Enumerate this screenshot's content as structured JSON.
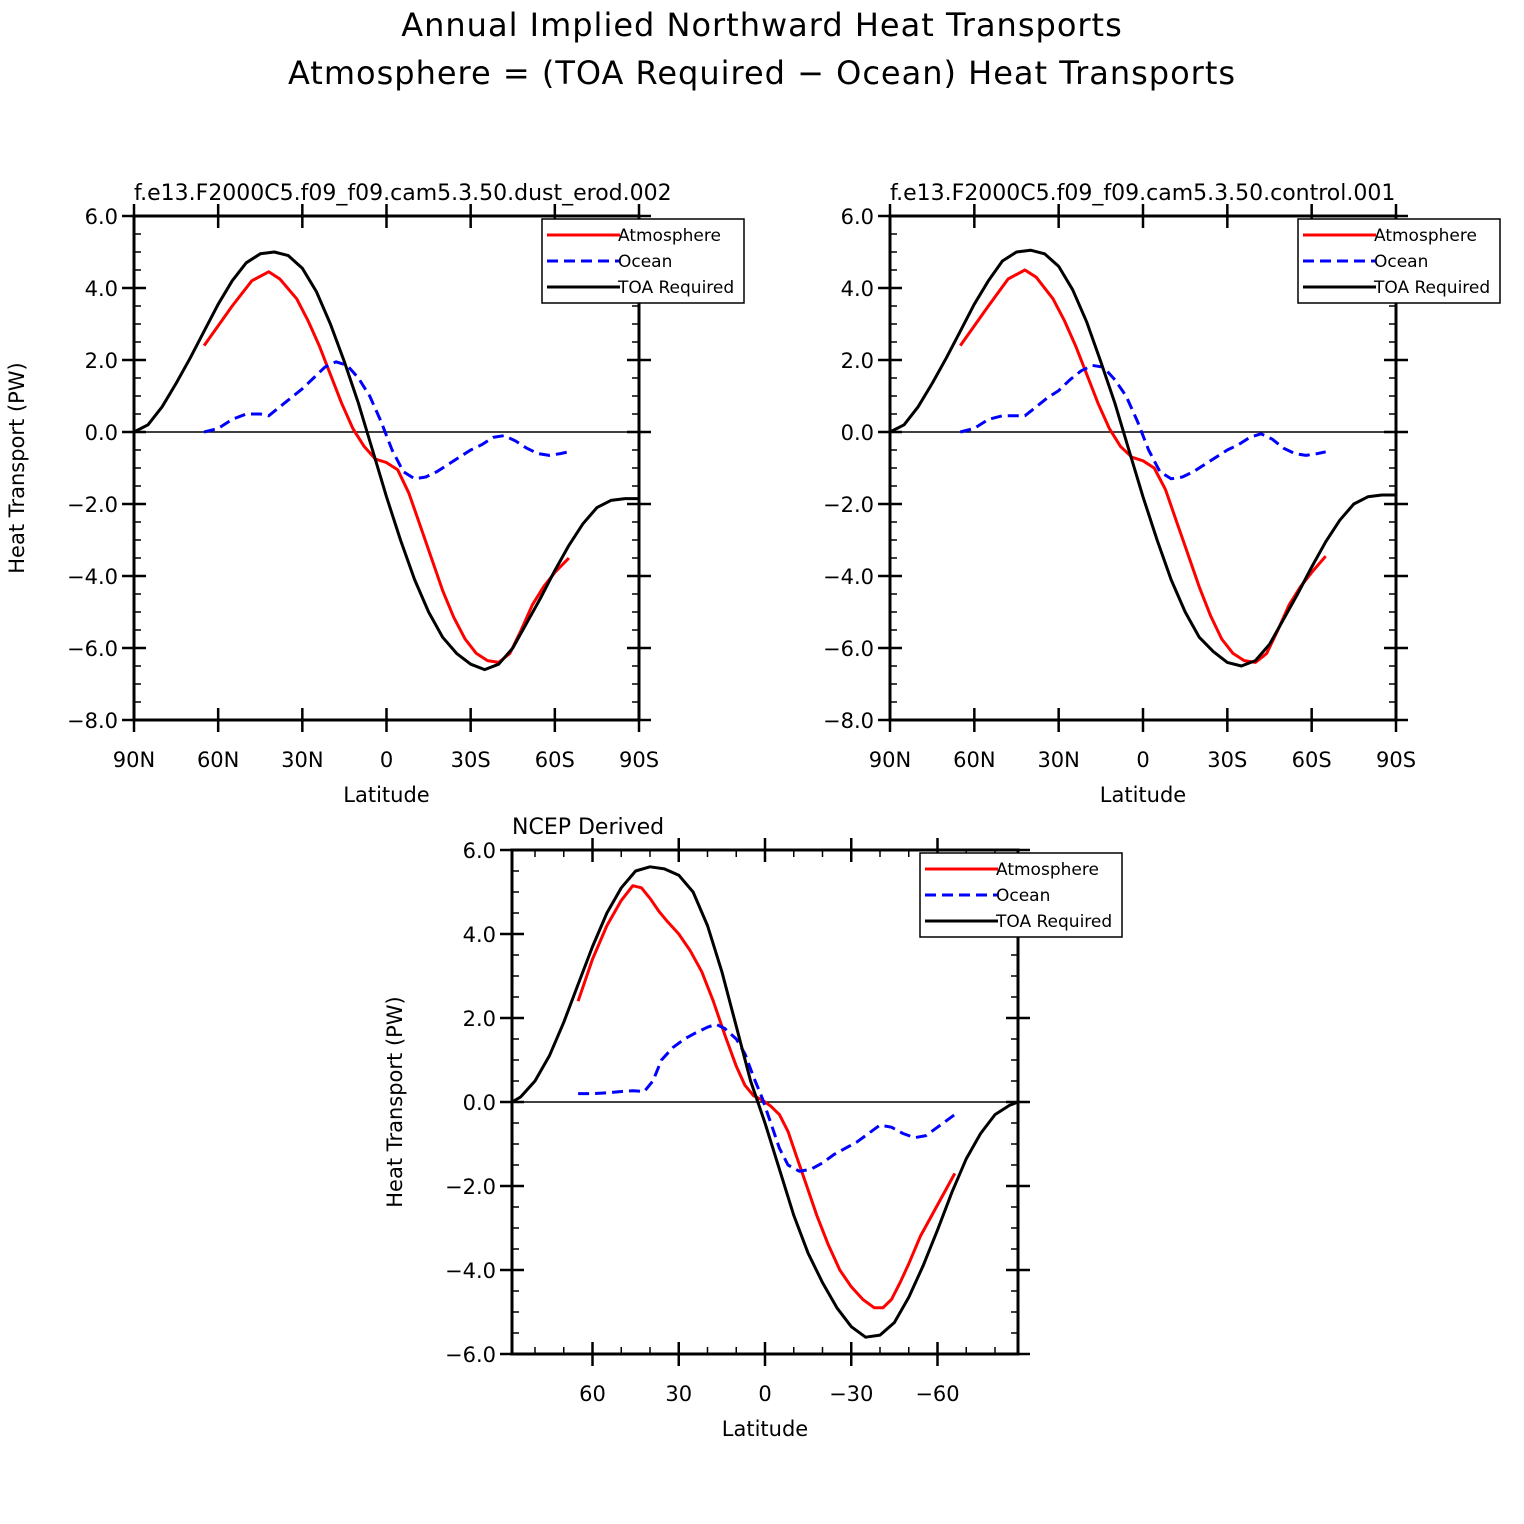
{
  "figure": {
    "title_line1": "Annual Implied Northward Heat Transports",
    "title_line2": "Atmosphere = (TOA Required − Ocean) Heat Transports"
  },
  "colors": {
    "atmosphere": "#ff0000",
    "ocean": "#0000ff",
    "toa": "#000000"
  },
  "chart_data": [
    {
      "type": "line",
      "title": "f.e13.F2000C5.f09_f09.cam5.3.50.dust_erod.002",
      "xlabel": "Latitude",
      "ylabel": "Heat Transport (PW)",
      "xlim": [
        90,
        -90
      ],
      "ylim": [
        -8,
        6
      ],
      "xticks": [
        90,
        60,
        30,
        0,
        -30,
        -60,
        -90
      ],
      "xtick_labels": [
        "90N",
        "60N",
        "30N",
        "0",
        "30S",
        "60S",
        "90S"
      ],
      "xminor": [],
      "yticks": [
        6,
        4,
        2,
        0,
        -2,
        -4,
        -6,
        -8
      ],
      "ytick_labels": [
        "6.0",
        "4.0",
        "2.0",
        "0.0",
        "−2.0",
        "−4.0",
        "−6.0",
        "−8.0"
      ],
      "legend_position": "top-right",
      "series": [
        {
          "name": "Atmosphere",
          "style": "solid",
          "x": [
            65,
            55,
            48,
            42,
            38,
            32,
            28,
            24,
            20,
            16,
            12,
            8,
            4,
            0,
            -4,
            -8,
            -12,
            -16,
            -20,
            -24,
            -28,
            -32,
            -36,
            -40,
            -44,
            -48,
            -52,
            -56,
            -60,
            -65
          ],
          "y": [
            2.4,
            3.5,
            4.2,
            4.45,
            4.25,
            3.7,
            3.1,
            2.4,
            1.6,
            0.8,
            0.1,
            -0.4,
            -0.75,
            -0.85,
            -1.05,
            -1.7,
            -2.6,
            -3.5,
            -4.4,
            -5.15,
            -5.75,
            -6.15,
            -6.35,
            -6.4,
            -6.15,
            -5.5,
            -4.8,
            -4.3,
            -3.9,
            -3.5
          ]
        },
        {
          "name": "Ocean",
          "style": "dashed",
          "x": [
            65,
            60,
            55,
            50,
            45,
            42,
            38,
            34,
            30,
            26,
            22,
            18,
            14,
            10,
            6,
            2,
            -2,
            -6,
            -10,
            -14,
            -18,
            -22,
            -26,
            -30,
            -34,
            -38,
            -42,
            -46,
            -50,
            -54,
            -58,
            -62,
            -65
          ],
          "y": [
            0.0,
            0.1,
            0.35,
            0.5,
            0.5,
            0.45,
            0.7,
            0.95,
            1.2,
            1.5,
            1.8,
            1.95,
            1.85,
            1.5,
            1.0,
            0.3,
            -0.5,
            -1.1,
            -1.3,
            -1.25,
            -1.1,
            -0.9,
            -0.7,
            -0.5,
            -0.35,
            -0.15,
            -0.1,
            -0.25,
            -0.45,
            -0.6,
            -0.65,
            -0.6,
            -0.55
          ]
        },
        {
          "name": "TOA Required",
          "style": "solid",
          "x": [
            90,
            85,
            80,
            75,
            70,
            65,
            60,
            55,
            50,
            45,
            40,
            35,
            30,
            25,
            20,
            15,
            10,
            5,
            0,
            -5,
            -10,
            -15,
            -20,
            -25,
            -30,
            -35,
            -40,
            -45,
            -50,
            -55,
            -60,
            -65,
            -70,
            -75,
            -80,
            -85,
            -90
          ],
          "y": [
            0.0,
            0.2,
            0.7,
            1.35,
            2.05,
            2.8,
            3.55,
            4.2,
            4.7,
            4.95,
            5.0,
            4.9,
            4.55,
            3.9,
            3.0,
            1.95,
            0.8,
            -0.5,
            -1.8,
            -3.0,
            -4.1,
            -5.0,
            -5.7,
            -6.15,
            -6.45,
            -6.6,
            -6.45,
            -6.0,
            -5.3,
            -4.6,
            -3.85,
            -3.15,
            -2.55,
            -2.1,
            -1.9,
            -1.85,
            -1.85
          ]
        }
      ]
    },
    {
      "type": "line",
      "title": "f.e13.F2000C5.f09_f09.cam5.3.50.control.001",
      "xlabel": "Latitude",
      "ylabel": "",
      "xlim": [
        90,
        -90
      ],
      "ylim": [
        -8,
        6
      ],
      "xticks": [
        90,
        60,
        30,
        0,
        -30,
        -60,
        -90
      ],
      "xtick_labels": [
        "90N",
        "60N",
        "30N",
        "0",
        "30S",
        "60S",
        "90S"
      ],
      "xminor": [],
      "yticks": [
        6,
        4,
        2,
        0,
        -2,
        -4,
        -6,
        -8
      ],
      "ytick_labels": [
        "6.0",
        "4.0",
        "2.0",
        "0.0",
        "−2.0",
        "−4.0",
        "−6.0",
        "−8.0"
      ],
      "legend_position": "top-right",
      "series": [
        {
          "name": "Atmosphere",
          "style": "solid",
          "x": [
            65,
            55,
            48,
            42,
            38,
            32,
            28,
            24,
            20,
            16,
            12,
            8,
            4,
            0,
            -4,
            -8,
            -12,
            -16,
            -20,
            -24,
            -28,
            -32,
            -36,
            -40,
            -44,
            -48,
            -52,
            -56,
            -60,
            -65
          ],
          "y": [
            2.4,
            3.5,
            4.25,
            4.5,
            4.3,
            3.7,
            3.1,
            2.4,
            1.6,
            0.8,
            0.1,
            -0.4,
            -0.7,
            -0.8,
            -1.0,
            -1.6,
            -2.5,
            -3.4,
            -4.3,
            -5.1,
            -5.75,
            -6.15,
            -6.35,
            -6.4,
            -6.15,
            -5.5,
            -4.8,
            -4.3,
            -3.9,
            -3.45
          ]
        },
        {
          "name": "Ocean",
          "style": "dashed",
          "x": [
            65,
            60,
            55,
            50,
            45,
            42,
            38,
            34,
            30,
            26,
            22,
            18,
            14,
            10,
            6,
            2,
            -2,
            -6,
            -10,
            -14,
            -18,
            -22,
            -26,
            -30,
            -34,
            -38,
            -42,
            -46,
            -50,
            -54,
            -58,
            -62,
            -65
          ],
          "y": [
            0.0,
            0.1,
            0.35,
            0.45,
            0.45,
            0.45,
            0.7,
            0.95,
            1.15,
            1.45,
            1.7,
            1.85,
            1.8,
            1.45,
            1.0,
            0.3,
            -0.5,
            -1.1,
            -1.3,
            -1.25,
            -1.1,
            -0.9,
            -0.7,
            -0.5,
            -0.35,
            -0.15,
            -0.05,
            -0.2,
            -0.45,
            -0.6,
            -0.65,
            -0.6,
            -0.55
          ]
        },
        {
          "name": "TOA Required",
          "style": "solid",
          "x": [
            90,
            85,
            80,
            75,
            70,
            65,
            60,
            55,
            50,
            45,
            40,
            35,
            30,
            25,
            20,
            15,
            10,
            5,
            0,
            -5,
            -10,
            -15,
            -20,
            -25,
            -30,
            -35,
            -40,
            -45,
            -50,
            -55,
            -60,
            -65,
            -70,
            -75,
            -80,
            -85,
            -90
          ],
          "y": [
            0.0,
            0.2,
            0.7,
            1.35,
            2.05,
            2.8,
            3.55,
            4.2,
            4.75,
            5.0,
            5.05,
            4.95,
            4.6,
            3.95,
            3.05,
            1.95,
            0.8,
            -0.5,
            -1.8,
            -3.0,
            -4.1,
            -5.0,
            -5.7,
            -6.1,
            -6.4,
            -6.5,
            -6.35,
            -5.9,
            -5.2,
            -4.5,
            -3.75,
            -3.05,
            -2.45,
            -2.0,
            -1.8,
            -1.75,
            -1.75
          ]
        }
      ]
    },
    {
      "type": "line",
      "title": "NCEP Derived",
      "xlabel": "Latitude",
      "ylabel": "Heat Transport (PW)",
      "xlim": [
        88,
        -88
      ],
      "ylim": [
        -6,
        6
      ],
      "xticks": [
        60,
        30,
        0,
        -30,
        -60
      ],
      "xtick_labels": [
        "60",
        "30",
        "0",
        "−30",
        "−60"
      ],
      "xminor": [
        80,
        70,
        50,
        40,
        20,
        10,
        -10,
        -20,
        -40,
        -50,
        -70,
        -80
      ],
      "yticks": [
        6,
        4,
        2,
        0,
        -2,
        -4,
        -6
      ],
      "ytick_labels": [
        "6.0",
        "4.0",
        "2.0",
        "0.0",
        "−2.0",
        "−4.0",
        "−6.0"
      ],
      "legend_position": "top-right",
      "series": [
        {
          "name": "Atmosphere",
          "style": "solid",
          "x": [
            65,
            60,
            55,
            50,
            46,
            43,
            40,
            37,
            34,
            30,
            26,
            22,
            18,
            14,
            10,
            7,
            4,
            1,
            -2,
            -5,
            -8,
            -11,
            -14,
            -18,
            -22,
            -26,
            -30,
            -34,
            -38,
            -41,
            -44,
            -47,
            -50,
            -54,
            -58,
            -62,
            -66
          ],
          "y": [
            2.4,
            3.4,
            4.2,
            4.8,
            5.15,
            5.1,
            4.85,
            4.55,
            4.3,
            4.0,
            3.6,
            3.1,
            2.4,
            1.6,
            0.85,
            0.4,
            0.15,
            0.05,
            -0.1,
            -0.3,
            -0.7,
            -1.3,
            -1.9,
            -2.7,
            -3.4,
            -4.0,
            -4.4,
            -4.7,
            -4.9,
            -4.9,
            -4.7,
            -4.3,
            -3.85,
            -3.2,
            -2.7,
            -2.2,
            -1.7
          ]
        },
        {
          "name": "Ocean",
          "style": "dashed",
          "x": [
            65,
            60,
            55,
            50,
            46,
            42,
            39,
            36,
            32,
            28,
            24,
            20,
            17,
            14,
            10,
            7,
            4,
            1,
            -2,
            -5,
            -8,
            -12,
            -16,
            -20,
            -24,
            -28,
            -32,
            -36,
            -40,
            -44,
            -48,
            -52,
            -56,
            -60,
            -64,
            -66
          ],
          "y": [
            0.2,
            0.2,
            0.22,
            0.25,
            0.27,
            0.25,
            0.5,
            1.0,
            1.3,
            1.5,
            1.65,
            1.78,
            1.85,
            1.75,
            1.5,
            1.15,
            0.6,
            0.1,
            -0.5,
            -1.1,
            -1.5,
            -1.65,
            -1.6,
            -1.45,
            -1.25,
            -1.1,
            -0.95,
            -0.75,
            -0.55,
            -0.6,
            -0.75,
            -0.85,
            -0.8,
            -0.6,
            -0.4,
            -0.3
          ]
        },
        {
          "name": "TOA Required",
          "style": "solid",
          "x": [
            88,
            85,
            80,
            75,
            70,
            65,
            60,
            55,
            50,
            45,
            40,
            35,
            30,
            25,
            20,
            15,
            10,
            5,
            0,
            -5,
            -10,
            -15,
            -20,
            -25,
            -30,
            -35,
            -40,
            -45,
            -50,
            -55,
            -60,
            -65,
            -70,
            -75,
            -80,
            -85,
            -88
          ],
          "y": [
            0.0,
            0.12,
            0.5,
            1.1,
            1.9,
            2.8,
            3.7,
            4.5,
            5.1,
            5.5,
            5.6,
            5.55,
            5.4,
            5.0,
            4.2,
            3.1,
            1.8,
            0.5,
            -0.5,
            -1.6,
            -2.7,
            -3.6,
            -4.3,
            -4.9,
            -5.35,
            -5.6,
            -5.55,
            -5.25,
            -4.65,
            -3.9,
            -3.05,
            -2.15,
            -1.35,
            -0.75,
            -0.3,
            -0.08,
            0.0
          ]
        }
      ]
    }
  ]
}
